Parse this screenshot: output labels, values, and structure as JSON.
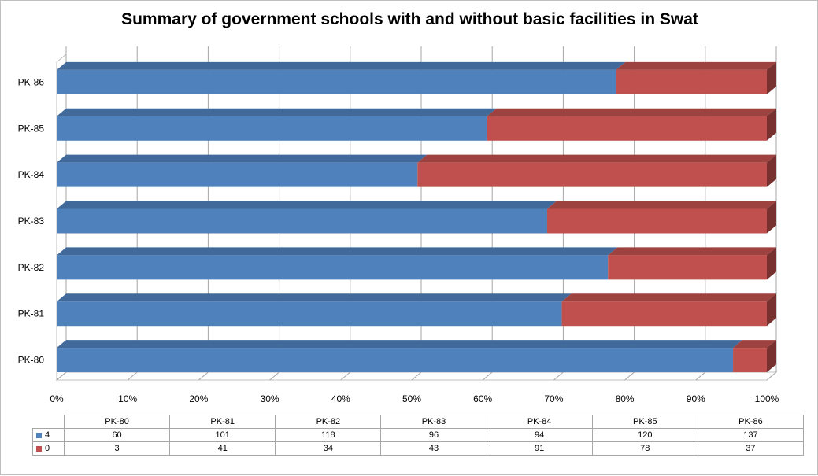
{
  "chart_data": {
    "type": "bar",
    "orientation": "horizontal",
    "stacked": "percent",
    "title": "Summary of government schools with and without basic facilities in Swat",
    "categories": [
      "PK-80",
      "PK-81",
      "PK-82",
      "PK-83",
      "PK-84",
      "PK-85",
      "PK-86"
    ],
    "series": [
      {
        "name": "4",
        "color": "#4f81bd",
        "values": [
          60,
          101,
          118,
          96,
          94,
          120,
          137
        ]
      },
      {
        "name": "0",
        "color": "#c0504d",
        "values": [
          3,
          41,
          34,
          43,
          91,
          78,
          37
        ]
      }
    ],
    "x_ticks": [
      "0%",
      "10%",
      "20%",
      "30%",
      "40%",
      "50%",
      "60%",
      "70%",
      "80%",
      "90%",
      "100%"
    ],
    "xlim": [
      0,
      100
    ],
    "grid": true,
    "legend": "data-table"
  }
}
